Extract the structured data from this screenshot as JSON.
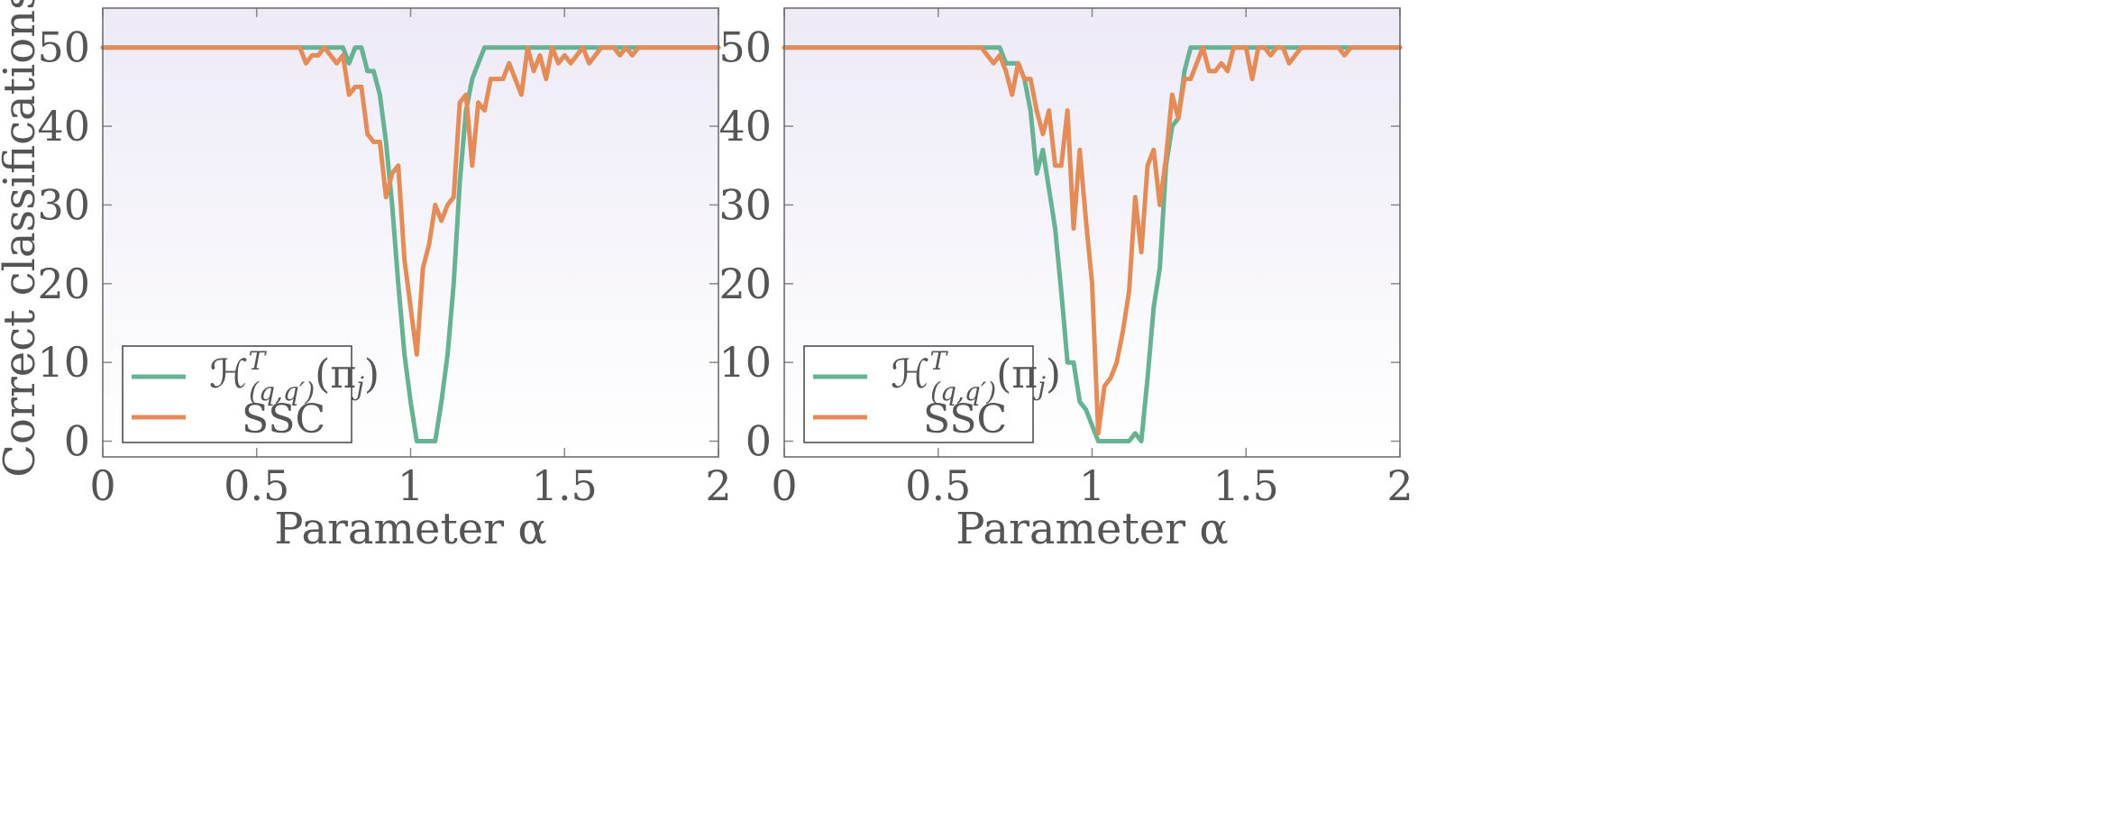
{
  "chart_data": [
    {
      "type": "line",
      "xlabel": "Parameter α",
      "ylabel": "Correct classifications",
      "xlim": [
        0,
        2
      ],
      "ylim": [
        -2,
        55
      ],
      "xticks": [
        "0",
        "0.5",
        "1",
        "1.5",
        "2"
      ],
      "xtick_values": [
        0,
        0.5,
        1,
        1.5,
        2
      ],
      "yticks": [
        "0",
        "10",
        "20",
        "30",
        "40",
        "50"
      ],
      "ytick_values": [
        0,
        10,
        20,
        30,
        40,
        50
      ],
      "legend_position": "bottom-left",
      "background_gradient": [
        "#edeaf6",
        "#ffffff"
      ],
      "series": [
        {
          "name": "ℋ^T_(q,q′)(π_j)",
          "color": "#66b293",
          "x": [
            0,
            0.64,
            0.66,
            0.68,
            0.7,
            0.72,
            0.74,
            0.76,
            0.78,
            0.8,
            0.82,
            0.84,
            0.86,
            0.88,
            0.9,
            0.92,
            0.94,
            0.96,
            0.98,
            1.0,
            1.02,
            1.04,
            1.06,
            1.08,
            1.1,
            1.12,
            1.14,
            1.16,
            1.18,
            1.2,
            1.22,
            1.24,
            1.26,
            1.28,
            1.3,
            1.7,
            1.72,
            1.74,
            2.0
          ],
          "y": [
            50,
            50,
            50,
            50,
            50,
            50,
            50,
            50,
            50,
            48,
            50,
            50,
            47,
            47,
            44,
            38,
            30,
            20,
            11,
            5,
            0,
            0,
            0,
            0,
            5,
            11,
            20,
            33,
            42,
            46,
            48,
            50,
            50,
            50,
            50,
            50,
            50,
            50,
            50
          ]
        },
        {
          "name": "SSC",
          "color": "#e48c58",
          "x": [
            0,
            0.64,
            0.66,
            0.68,
            0.7,
            0.72,
            0.74,
            0.76,
            0.78,
            0.8,
            0.82,
            0.84,
            0.86,
            0.88,
            0.9,
            0.92,
            0.94,
            0.96,
            0.98,
            1.0,
            1.02,
            1.04,
            1.06,
            1.08,
            1.1,
            1.12,
            1.14,
            1.16,
            1.18,
            1.2,
            1.22,
            1.24,
            1.26,
            1.28,
            1.3,
            1.32,
            1.34,
            1.36,
            1.38,
            1.4,
            1.42,
            1.44,
            1.46,
            1.48,
            1.5,
            1.52,
            1.54,
            1.56,
            1.58,
            1.6,
            1.62,
            1.64,
            1.66,
            1.68,
            1.7,
            1.72,
            1.74,
            2.0
          ],
          "y": [
            50,
            50,
            48,
            49,
            49,
            50,
            49,
            48,
            49,
            44,
            45,
            45,
            39,
            38,
            38,
            31,
            34,
            35,
            23,
            17,
            11,
            22,
            25,
            30,
            28,
            30,
            31,
            43,
            44,
            35,
            43,
            42,
            46,
            46,
            46,
            48,
            46,
            44,
            50,
            47,
            49,
            46,
            50,
            48,
            49,
            48,
            49,
            50,
            48,
            49,
            50,
            50,
            50,
            49,
            50,
            49,
            50,
            50
          ]
        }
      ]
    },
    {
      "type": "line",
      "xlabel": "Parameter α",
      "ylabel": "",
      "xlim": [
        0,
        2
      ],
      "ylim": [
        -2,
        55
      ],
      "xticks": [
        "0",
        "0.5",
        "1",
        "1.5",
        "2"
      ],
      "xtick_values": [
        0,
        0.5,
        1,
        1.5,
        2
      ],
      "yticks": [
        "0",
        "10",
        "20",
        "30",
        "40",
        "50"
      ],
      "ytick_values": [
        0,
        10,
        20,
        30,
        40,
        50
      ],
      "legend_position": "bottom-left",
      "background_gradient": [
        "#edeaf6",
        "#ffffff"
      ],
      "series": [
        {
          "name": "ℋ^T_(q,q′)(π_j)",
          "color": "#66b293",
          "x": [
            0,
            0.7,
            0.72,
            0.74,
            0.76,
            0.78,
            0.8,
            0.82,
            0.84,
            0.86,
            0.88,
            0.9,
            0.92,
            0.94,
            0.96,
            0.98,
            1.0,
            1.02,
            1.04,
            1.06,
            1.08,
            1.1,
            1.12,
            1.14,
            1.16,
            1.18,
            1.2,
            1.22,
            1.24,
            1.26,
            1.28,
            1.3,
            1.32,
            1.8,
            1.82,
            1.84,
            1.86,
            2.0
          ],
          "y": [
            50,
            50,
            48,
            48,
            48,
            46,
            42,
            34,
            37,
            32,
            27,
            19,
            10,
            10,
            5,
            4,
            2,
            0,
            0,
            0,
            0,
            0,
            0,
            1,
            0,
            8,
            17,
            22,
            35,
            40,
            41,
            47,
            50,
            50,
            50,
            50,
            50,
            50
          ]
        },
        {
          "name": "SSC",
          "color": "#e48c58",
          "x": [
            0,
            0.64,
            0.66,
            0.68,
            0.7,
            0.72,
            0.74,
            0.76,
            0.78,
            0.8,
            0.82,
            0.84,
            0.86,
            0.88,
            0.9,
            0.92,
            0.94,
            0.96,
            0.98,
            1.0,
            1.02,
            1.04,
            1.06,
            1.08,
            1.1,
            1.12,
            1.14,
            1.16,
            1.18,
            1.2,
            1.22,
            1.24,
            1.26,
            1.28,
            1.3,
            1.32,
            1.34,
            1.36,
            1.38,
            1.4,
            1.42,
            1.44,
            1.46,
            1.48,
            1.5,
            1.52,
            1.54,
            1.56,
            1.58,
            1.6,
            1.62,
            1.64,
            1.66,
            1.68,
            1.7,
            1.72,
            1.74,
            1.8,
            1.82,
            1.84,
            1.86,
            2.0
          ],
          "y": [
            50,
            50,
            49,
            48,
            49,
            47,
            44,
            48,
            46,
            46,
            42,
            39,
            42,
            35,
            35,
            42,
            27,
            37,
            28,
            20,
            1,
            7,
            8,
            10,
            14,
            19,
            31,
            24,
            35,
            37,
            30,
            36,
            44,
            41,
            46,
            46,
            48,
            50,
            47,
            47,
            48,
            47,
            50,
            50,
            50,
            46,
            50,
            50,
            49,
            50,
            50,
            48,
            49,
            50,
            50,
            50,
            50,
            50,
            49,
            50,
            50,
            50
          ]
        }
      ]
    }
  ]
}
